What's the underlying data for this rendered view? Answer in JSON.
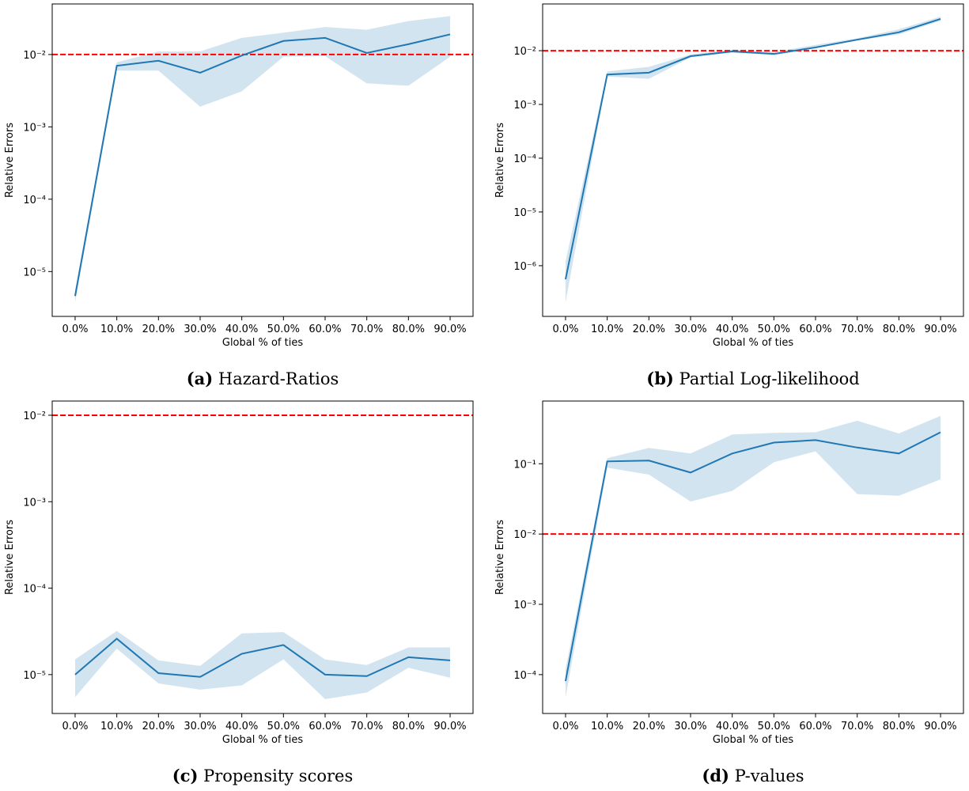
{
  "chart_data": [
    {
      "type": "line",
      "label": "(a)",
      "caption": "Hazard-Ratios",
      "xlabel": "Global % of ties",
      "ylabel": "Relative Errors",
      "categories": [
        "0.0%",
        "10.0%",
        "20.0%",
        "30.0%",
        "40.0%",
        "50.0%",
        "60.0%",
        "70.0%",
        "80.0%",
        "90.0%"
      ],
      "values": [
        4.6e-06,
        0.007,
        0.0082,
        0.0056,
        0.0097,
        0.0154,
        0.017,
        0.0105,
        0.0139,
        0.019
      ],
      "band_upper": [
        5.5e-06,
        0.0078,
        0.011,
        0.011,
        0.017,
        0.02,
        0.024,
        0.022,
        0.029,
        0.034
      ],
      "band_lower": [
        3.8e-06,
        0.006,
        0.006,
        0.0019,
        0.0031,
        0.0093,
        0.0095,
        0.004,
        0.0037,
        0.0093
      ],
      "color": "#1f77b4",
      "log_y": true,
      "ylim": [
        2.4e-06,
        0.05
      ],
      "yticks": [
        {
          "value": 1e-05,
          "label": "10⁻⁵"
        },
        {
          "value": 0.0001,
          "label": "10⁻⁴"
        },
        {
          "value": 0.001,
          "label": "10⁻³"
        },
        {
          "value": 0.01,
          "label": "10⁻²"
        }
      ],
      "hline": {
        "value": 0.01,
        "color": "#ff0000"
      }
    },
    {
      "type": "line",
      "label": "(b)",
      "caption": "Partial Log-likelihood",
      "xlabel": "Global % of ties",
      "ylabel": "Relative Errors",
      "categories": [
        "0.0%",
        "10.0%",
        "20.0%",
        "30.0%",
        "40.0%",
        "50.0%",
        "60.0%",
        "70.0%",
        "80.0%",
        "90.0%"
      ],
      "values": [
        5.6e-07,
        0.0036,
        0.0039,
        0.0079,
        0.0097,
        0.0087,
        0.0115,
        0.016,
        0.022,
        0.039
      ],
      "band_upper": [
        1.2e-06,
        0.0041,
        0.005,
        0.0085,
        0.0105,
        0.0095,
        0.0128,
        0.017,
        0.025,
        0.043
      ],
      "band_lower": [
        2.1e-07,
        0.0033,
        0.003,
        0.0075,
        0.0093,
        0.0083,
        0.011,
        0.0155,
        0.02,
        0.036
      ],
      "color": "#1f77b4",
      "log_y": true,
      "ylim": [
        1.14e-07,
        0.074
      ],
      "yticks": [
        {
          "value": 1e-06,
          "label": "10⁻⁶"
        },
        {
          "value": 1e-05,
          "label": "10⁻⁵"
        },
        {
          "value": 0.0001,
          "label": "10⁻⁴"
        },
        {
          "value": 0.001,
          "label": "10⁻³"
        },
        {
          "value": 0.01,
          "label": "10⁻²"
        }
      ],
      "hline": {
        "value": 0.01,
        "color": "#ff0000"
      }
    },
    {
      "type": "line",
      "label": "(c)",
      "caption": "Propensity scores",
      "xlabel": "Global % of ties",
      "ylabel": "Relative Errors",
      "categories": [
        "0.0%",
        "10.0%",
        "20.0%",
        "30.0%",
        "40.0%",
        "50.0%",
        "60.0%",
        "70.0%",
        "80.0%",
        "90.0%"
      ],
      "values": [
        1e-05,
        2.6e-05,
        1.04e-05,
        9.4e-06,
        1.74e-05,
        2.2e-05,
        1e-05,
        9.6e-06,
        1.59e-05,
        1.46e-05
      ],
      "band_upper": [
        1.5e-05,
        3.2e-05,
        1.46e-05,
        1.26e-05,
        3e-05,
        3.1e-05,
        1.5e-05,
        1.29e-05,
        2.06e-05,
        2.06e-05
      ],
      "band_lower": [
        5.5e-06,
        2e-05,
        7.9e-06,
        6.7e-06,
        7.5e-06,
        1.5e-05,
        5.2e-06,
        6.2e-06,
        1.2e-05,
        9.2e-06
      ],
      "color": "#1f77b4",
      "log_y": true,
      "ylim": [
        3.55e-06,
        0.0146
      ],
      "yticks": [
        {
          "value": 1e-05,
          "label": "10⁻⁵"
        },
        {
          "value": 0.0001,
          "label": "10⁻⁴"
        },
        {
          "value": 0.001,
          "label": "10⁻³"
        },
        {
          "value": 0.01,
          "label": "10⁻²"
        }
      ],
      "hline": {
        "value": 0.01,
        "color": "#ff0000"
      }
    },
    {
      "type": "line",
      "label": "(d)",
      "caption": "P-values",
      "xlabel": "Global % of ties",
      "ylabel": "Relative Errors",
      "categories": [
        "0.0%",
        "10.0%",
        "20.0%",
        "30.0%",
        "40.0%",
        "50.0%",
        "60.0%",
        "70.0%",
        "80.0%",
        "90.0%"
      ],
      "values": [
        8.1e-05,
        0.108,
        0.111,
        0.075,
        0.14,
        0.2,
        0.217,
        0.17,
        0.14,
        0.28
      ],
      "band_upper": [
        0.00012,
        0.12,
        0.168,
        0.14,
        0.26,
        0.275,
        0.28,
        0.41,
        0.27,
        0.48
      ],
      "band_lower": [
        4.8e-05,
        0.088,
        0.07,
        0.029,
        0.041,
        0.105,
        0.15,
        0.037,
        0.035,
        0.06
      ],
      "color": "#1f77b4",
      "log_y": true,
      "ylim": [
        2.8e-05,
        0.78
      ],
      "yticks": [
        {
          "value": 0.0001,
          "label": "10⁻⁴"
        },
        {
          "value": 0.001,
          "label": "10⁻³"
        },
        {
          "value": 0.01,
          "label": "10⁻²"
        },
        {
          "value": 0.1,
          "label": "10⁻¹"
        }
      ],
      "hline": {
        "value": 0.01,
        "color": "#ff0000"
      }
    }
  ]
}
